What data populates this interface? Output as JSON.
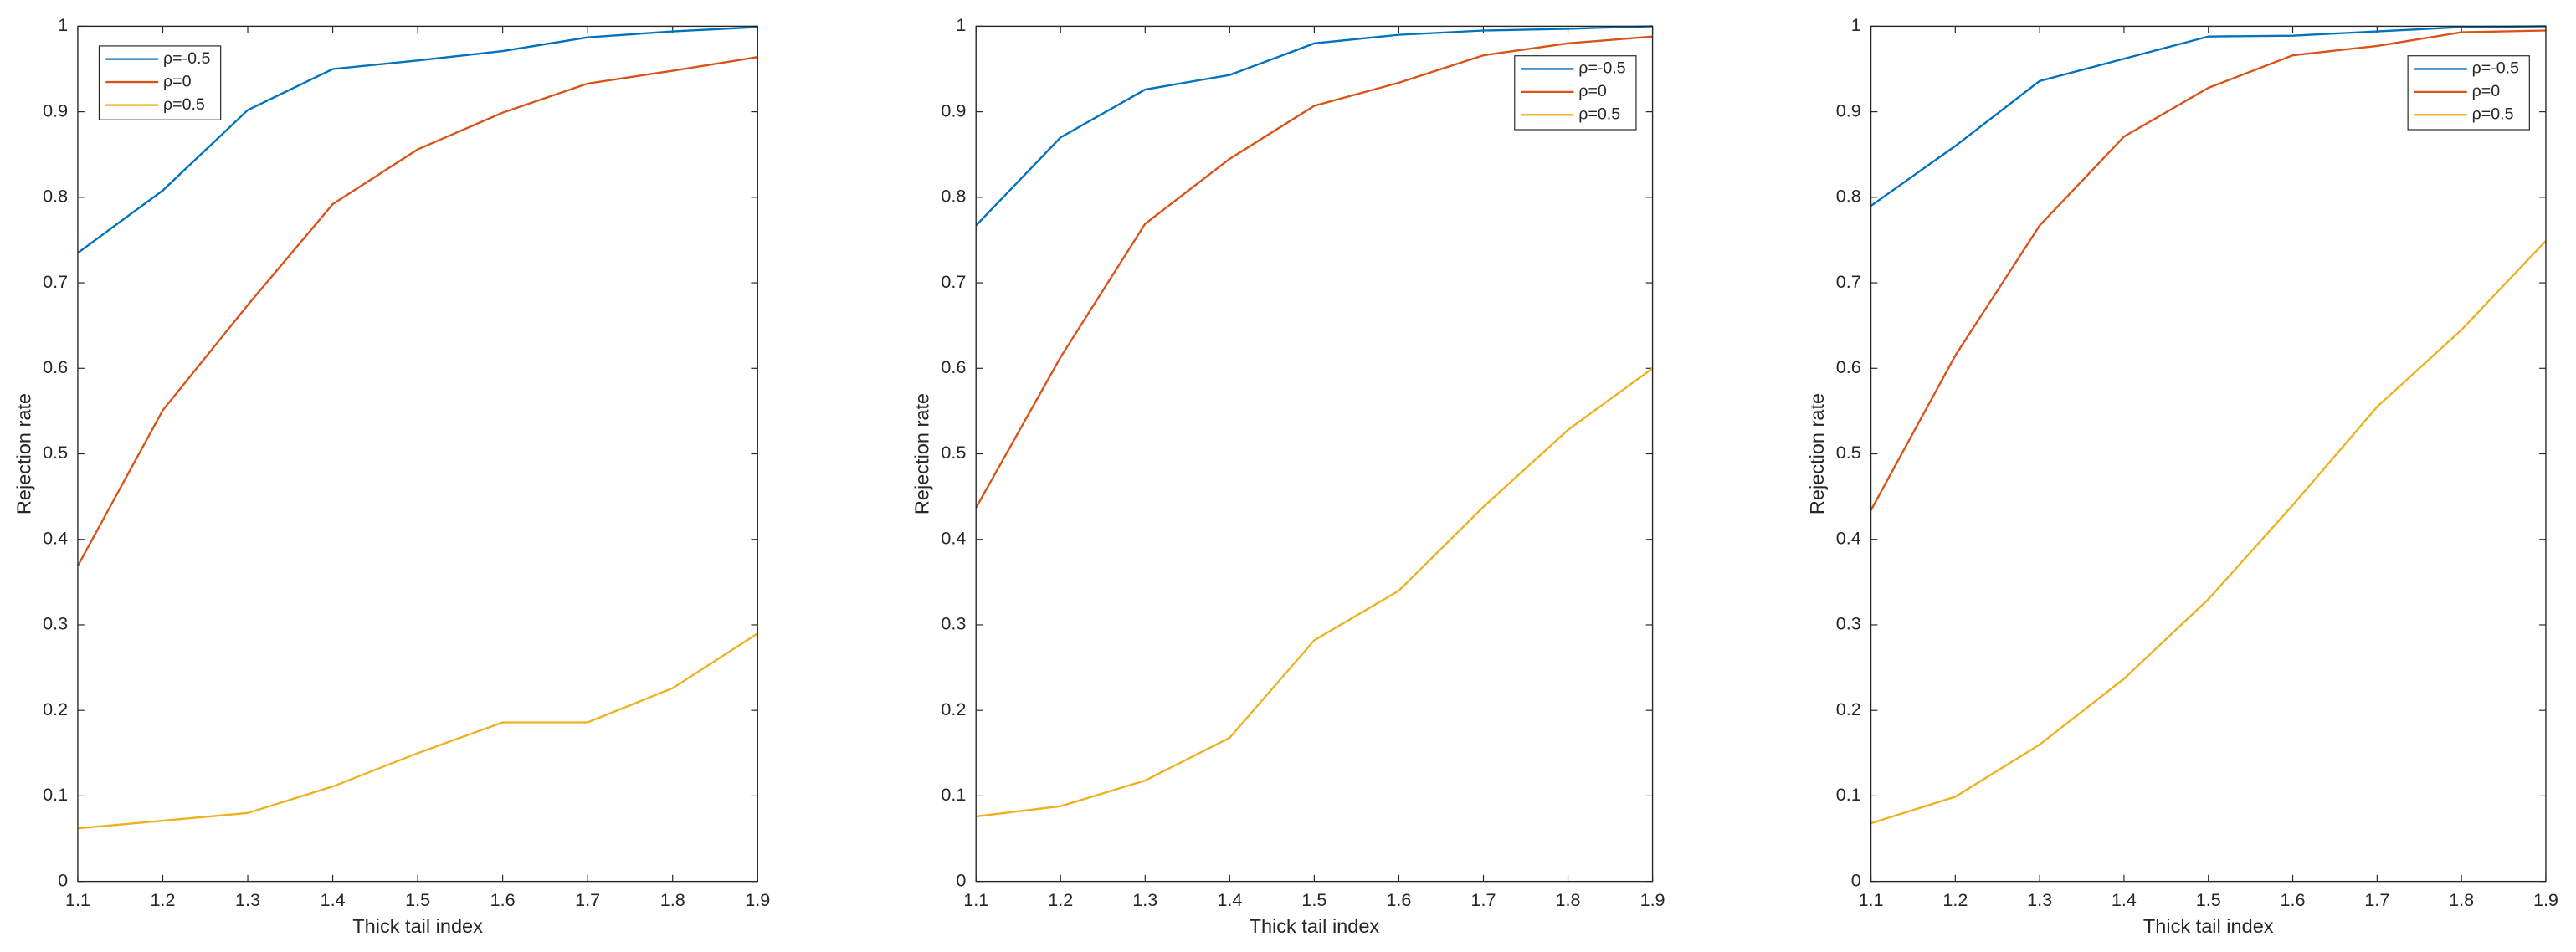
{
  "chart_data": [
    {
      "type": "line",
      "xlabel": "Thick tail index",
      "ylabel": "Rejection rate",
      "x": [
        1.1,
        1.2,
        1.3,
        1.4,
        1.5,
        1.6,
        1.7,
        1.8,
        1.9
      ],
      "xlim": [
        1.1,
        1.9
      ],
      "xticks": [
        1.1,
        1.2,
        1.3,
        1.4,
        1.5,
        1.6,
        1.7,
        1.8,
        1.9
      ],
      "ylim": [
        0,
        1
      ],
      "yticks": [
        0,
        0.1,
        0.2,
        0.3,
        0.4,
        0.5,
        0.6,
        0.7,
        0.8,
        0.9,
        1
      ],
      "legend_loc": "upper left",
      "series": [
        {
          "name": "ρ=-0.5",
          "color": "#0072bd",
          "values": [
            0.735,
            0.808,
            0.902,
            0.95,
            0.96,
            0.971,
            0.987,
            0.994,
            0.999
          ]
        },
        {
          "name": "ρ=0",
          "color": "#d95319",
          "values": [
            0.369,
            0.551,
            0.674,
            0.792,
            0.856,
            0.899,
            0.933,
            0.948,
            0.964
          ]
        },
        {
          "name": "ρ=0.5",
          "color": "#edb120",
          "values": [
            0.062,
            0.071,
            0.08,
            0.111,
            0.15,
            0.186,
            0.186,
            0.226,
            0.29
          ]
        }
      ]
    },
    {
      "type": "line",
      "xlabel": "Thick tail index",
      "ylabel": "Rejection rate",
      "x": [
        1.1,
        1.2,
        1.3,
        1.4,
        1.5,
        1.6,
        1.7,
        1.8,
        1.9
      ],
      "xlim": [
        1.1,
        1.9
      ],
      "xticks": [
        1.1,
        1.2,
        1.3,
        1.4,
        1.5,
        1.6,
        1.7,
        1.8,
        1.9
      ],
      "ylim": [
        0,
        1
      ],
      "yticks": [
        0,
        0.1,
        0.2,
        0.3,
        0.4,
        0.5,
        0.6,
        0.7,
        0.8,
        0.9,
        1
      ],
      "legend_loc": "upper right",
      "series": [
        {
          "name": "ρ=-0.5",
          "color": "#0072bd",
          "values": [
            0.767,
            0.87,
            0.926,
            0.943,
            0.98,
            0.99,
            0.995,
            0.997,
            1.0
          ]
        },
        {
          "name": "ρ=0",
          "color": "#d95319",
          "values": [
            0.437,
            0.613,
            0.769,
            0.845,
            0.907,
            0.934,
            0.966,
            0.98,
            0.988
          ]
        },
        {
          "name": "ρ=0.5",
          "color": "#edb120",
          "values": [
            0.076,
            0.088,
            0.118,
            0.168,
            0.282,
            0.34,
            0.438,
            0.528,
            0.6
          ]
        }
      ]
    },
    {
      "type": "line",
      "xlabel": "Thick tail index",
      "ylabel": "Rejection rate",
      "x": [
        1.1,
        1.2,
        1.3,
        1.4,
        1.5,
        1.6,
        1.7,
        1.8,
        1.9
      ],
      "xlim": [
        1.1,
        1.9
      ],
      "xticks": [
        1.1,
        1.2,
        1.3,
        1.4,
        1.5,
        1.6,
        1.7,
        1.8,
        1.9
      ],
      "ylim": [
        0,
        1
      ],
      "yticks": [
        0,
        0.1,
        0.2,
        0.3,
        0.4,
        0.5,
        0.6,
        0.7,
        0.8,
        0.9,
        1
      ],
      "legend_loc": "upper right",
      "series": [
        {
          "name": "ρ=-0.5",
          "color": "#0072bd",
          "values": [
            0.79,
            0.86,
            0.936,
            0.962,
            0.988,
            0.989,
            0.994,
            0.999,
            1.0
          ]
        },
        {
          "name": "ρ=0",
          "color": "#d95319",
          "values": [
            0.434,
            0.615,
            0.767,
            0.871,
            0.928,
            0.966,
            0.977,
            0.993,
            0.995
          ]
        },
        {
          "name": "ρ=0.5",
          "color": "#edb120",
          "values": [
            0.068,
            0.099,
            0.16,
            0.237,
            0.33,
            0.44,
            0.555,
            0.645,
            0.749
          ]
        }
      ]
    }
  ]
}
